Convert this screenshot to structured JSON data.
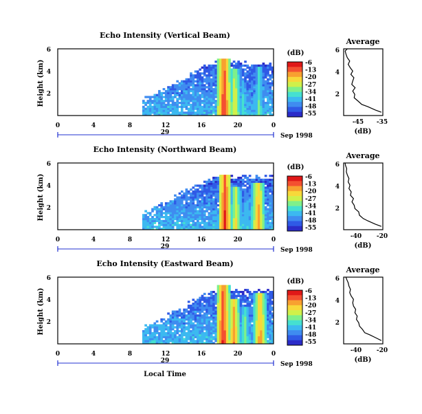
{
  "colors": {
    "scale": [
      "#2b2cc8",
      "#2f5ae6",
      "#3f8cf0",
      "#3cb9f0",
      "#45e0d0",
      "#7ff08a",
      "#d0f04a",
      "#f8d83a",
      "#f8a030",
      "#f45030",
      "#e01818"
    ],
    "strong_echo": "#f23a24",
    "mid_echo": "#f2b030",
    "axis": "#000000",
    "time_bar": "#2030d0"
  },
  "colorbar": {
    "unit_label": "(dB)",
    "ticks": [
      "-6",
      "-13",
      "-20",
      "-27",
      "-34",
      "-41",
      "-48",
      "-55"
    ]
  },
  "shared": {
    "date_label": "Sep 1998",
    "day_label": "29",
    "xlabel": "Local Time"
  },
  "chart_data": [
    {
      "type": "heatmap",
      "title": "Echo Intensity (Vertical Beam)",
      "ylabel": "Height (km)",
      "xlim": [
        0,
        24
      ],
      "ylim": [
        0,
        6
      ],
      "x_ticks": [
        "0",
        "4",
        "8",
        "12",
        "16",
        "20",
        "0"
      ],
      "y_ticks": [
        "2",
        "4",
        "6"
      ],
      "data_start_hour": 9.4,
      "echo_columns": [
        {
          "x": 18.5,
          "top": 5.2,
          "intensity": -6
        },
        {
          "x": 19.7,
          "top": 4.2,
          "intensity": -20
        },
        {
          "x": 20.6,
          "top": 3.2,
          "intensity": -34
        },
        {
          "x": 22.4,
          "top": 4.5,
          "intensity": -30
        }
      ],
      "profile": {
        "title": "Average",
        "xlabel": "(dB)",
        "x_ticks": [
          "-45",
          "-35"
        ],
        "xlim": [
          -48,
          -35
        ],
        "y_ticks": [
          "2",
          "4",
          "6"
        ],
        "ylim": [
          0,
          6
        ],
        "heights": [
          0.3,
          0.5,
          0.8,
          1.0,
          1.3,
          1.6,
          1.9,
          2.2,
          2.5,
          2.8,
          3.1,
          3.4,
          3.7,
          4.0,
          4.3,
          4.6,
          4.9,
          5.2,
          5.5,
          5.8,
          6.0
        ],
        "values": [
          -35.5,
          -37.5,
          -40.0,
          -42.0,
          -43.2,
          -44.5,
          -44.3,
          -45.0,
          -44.2,
          -45.3,
          -45.0,
          -44.6,
          -45.6,
          -45.0,
          -45.8,
          -46.5,
          -46.0,
          -46.8,
          -47.2,
          -47.5,
          -46.8
        ]
      }
    },
    {
      "type": "heatmap",
      "title": "Echo Intensity (Northward Beam)",
      "ylabel": "Height (km)",
      "xlim": [
        0,
        24
      ],
      "ylim": [
        0,
        6
      ],
      "x_ticks": [
        "0",
        "4",
        "8",
        "12",
        "16",
        "20",
        "0"
      ],
      "y_ticks": [
        "2",
        "4",
        "6"
      ],
      "data_start_hour": 9.4,
      "echo_columns": [
        {
          "x": 18.6,
          "top": 5.0,
          "intensity": -6
        },
        {
          "x": 19.8,
          "top": 3.8,
          "intensity": -20
        },
        {
          "x": 21.0,
          "top": 3.0,
          "intensity": -34
        },
        {
          "x": 22.3,
          "top": 4.2,
          "intensity": -13
        }
      ],
      "profile": {
        "title": "Average",
        "xlabel": "(dB)",
        "x_ticks": [
          "-40",
          "-20"
        ],
        "xlim": [
          -46,
          -20
        ],
        "y_ticks": [
          "2",
          "4",
          "6"
        ],
        "ylim": [
          0,
          6
        ],
        "heights": [
          0.3,
          0.5,
          0.8,
          1.0,
          1.3,
          1.6,
          1.9,
          2.2,
          2.5,
          2.8,
          3.1,
          3.4,
          3.7,
          4.0,
          4.3,
          4.6,
          4.9,
          5.2,
          5.5,
          5.8,
          6.0
        ],
        "values": [
          -21.0,
          -25.0,
          -30.0,
          -33.0,
          -35.5,
          -36.0,
          -38.5,
          -39.0,
          -40.5,
          -39.5,
          -41.5,
          -41.0,
          -42.5,
          -41.8,
          -43.0,
          -42.5,
          -43.5,
          -44.2,
          -44.0,
          -44.8,
          -45.0
        ]
      }
    },
    {
      "type": "heatmap",
      "title": "Echo Intensity (Eastward Beam)",
      "ylabel": "Height (km)",
      "xlim": [
        0,
        24
      ],
      "ylim": [
        0,
        6
      ],
      "x_ticks": [
        "0",
        "4",
        "8",
        "12",
        "16",
        "20",
        "0"
      ],
      "y_ticks": [
        "2",
        "4",
        "6"
      ],
      "data_start_hour": 9.4,
      "echo_columns": [
        {
          "x": 18.4,
          "top": 5.3,
          "intensity": -6
        },
        {
          "x": 19.6,
          "top": 4.0,
          "intensity": -13
        },
        {
          "x": 20.8,
          "top": 3.4,
          "intensity": -27
        },
        {
          "x": 22.5,
          "top": 4.6,
          "intensity": -13
        }
      ],
      "profile": {
        "title": "Average",
        "xlabel": "(dB)",
        "x_ticks": [
          "-40",
          "-20"
        ],
        "xlim": [
          -46,
          -20
        ],
        "y_ticks": [
          "2",
          "4",
          "6"
        ],
        "ylim": [
          0,
          6
        ],
        "heights": [
          0.3,
          0.5,
          0.8,
          1.0,
          1.3,
          1.6,
          1.9,
          2.2,
          2.5,
          2.8,
          3.1,
          3.4,
          3.7,
          4.0,
          4.3,
          4.6,
          4.9,
          5.2,
          5.5,
          5.8,
          6.0
        ],
        "values": [
          -21.0,
          -24.0,
          -28.5,
          -32.0,
          -33.5,
          -35.5,
          -36.0,
          -37.5,
          -37.0,
          -38.5,
          -38.0,
          -39.5,
          -40.0,
          -39.5,
          -41.0,
          -42.0,
          -41.5,
          -42.5,
          -43.0,
          -44.0,
          -44.5
        ]
      }
    }
  ]
}
